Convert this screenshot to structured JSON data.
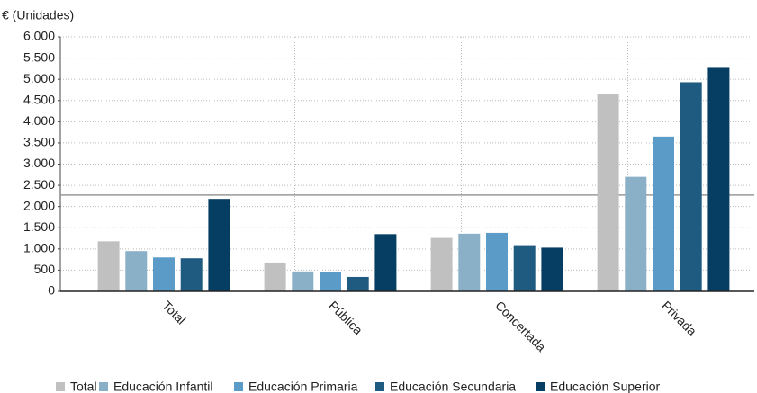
{
  "chart_data": {
    "type": "bar",
    "y_label": "€ (Unidades)",
    "categories": [
      "Total",
      "Pública",
      "Concertada",
      "Privada"
    ],
    "series": [
      {
        "name": "Total",
        "color": "#c0c0c0",
        "values": [
          1180,
          680,
          1260,
          4650
        ]
      },
      {
        "name": "Educación Infantil",
        "color": "#8ab0c8",
        "values": [
          950,
          470,
          1360,
          2700
        ]
      },
      {
        "name": "Educación Primaria",
        "color": "#5a9bc7",
        "values": [
          800,
          450,
          1380,
          3650
        ]
      },
      {
        "name": "Educación Secundaria",
        "color": "#1f5a80",
        "values": [
          780,
          340,
          1090,
          4930
        ]
      },
      {
        "name": "Educación Superior",
        "color": "#063e63",
        "values": [
          2180,
          1350,
          1030,
          5270
        ]
      }
    ],
    "reference_line": 2270,
    "ylim": [
      0,
      6000
    ],
    "yticks": [
      0,
      500,
      {
        "value": 1000,
        "label": "1.000"
      },
      {
        "value": 1500,
        "label": "1.500"
      },
      {
        "value": 2000,
        "label": "2.000"
      },
      {
        "value": 2500,
        "label": "2.500"
      },
      {
        "value": 3000,
        "label": "3.000"
      },
      {
        "value": 3500,
        "label": "3.500"
      },
      {
        "value": 4000,
        "label": "4.000"
      },
      {
        "value": 4500,
        "label": "4.500"
      },
      {
        "value": 5000,
        "label": "5.000"
      },
      {
        "value": 5500,
        "label": "5.500"
      },
      {
        "value": 6000,
        "label": "6.000"
      }
    ],
    "grid": true,
    "legend": "bottom"
  }
}
